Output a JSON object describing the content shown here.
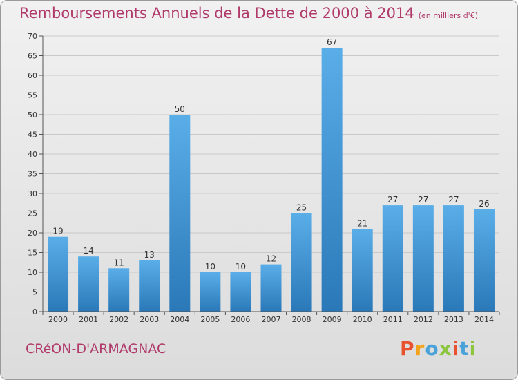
{
  "header": {
    "title": "Remboursements Annuels de la Dette de 2000 à 2014",
    "unit_note": "(en milliers d'€)"
  },
  "footer": {
    "commune": "CRéON-D'ARMAGNAC",
    "logo_text": "Proxiti",
    "logo_colors": [
      "#e8522e",
      "#f2a31b",
      "#4aa2d9",
      "#8cc63f",
      "#e8522e",
      "#4aa2d9",
      "#8cc63f"
    ]
  },
  "colors": {
    "bar_light": "#5aaee8",
    "bar_dark": "#2a78b8",
    "grid": "#c9c9c9",
    "title": "#b03a6a"
  },
  "chart_data": {
    "type": "bar",
    "title": "Remboursements Annuels de la Dette de 2000 à 2014",
    "subtitle": "(en milliers d'€)",
    "xlabel": "",
    "ylabel": "",
    "categories": [
      "2000",
      "2001",
      "2002",
      "2003",
      "2004",
      "2005",
      "2006",
      "2007",
      "2008",
      "2009",
      "2010",
      "2011",
      "2012",
      "2013",
      "2014"
    ],
    "values": [
      19,
      14,
      11,
      13,
      50,
      10,
      10,
      12,
      25,
      67,
      21,
      27,
      27,
      27,
      26
    ],
    "ylim": [
      0,
      70
    ],
    "yticks": [
      0,
      5,
      10,
      15,
      20,
      25,
      30,
      35,
      40,
      45,
      50,
      55,
      60,
      65,
      70
    ],
    "grid": true,
    "legend": "none"
  }
}
